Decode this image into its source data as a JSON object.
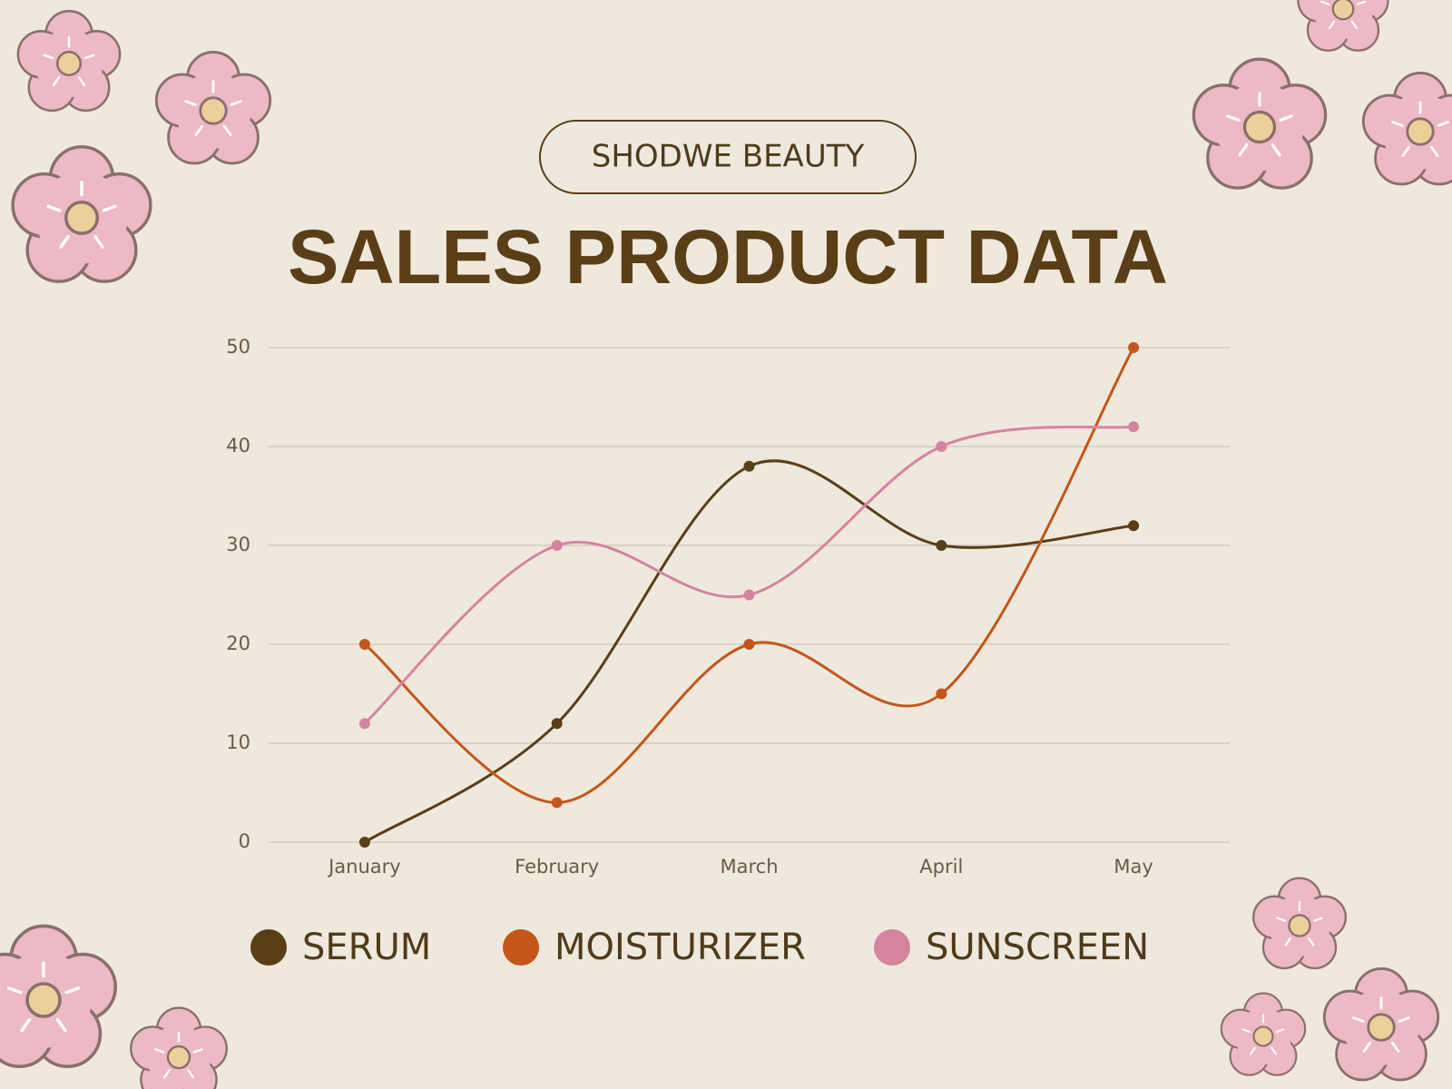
{
  "brand": "SHODWE BEAUTY",
  "chart_data": {
    "type": "line",
    "title": "SALES PRODUCT DATA",
    "categories": [
      "January",
      "February",
      "March",
      "April",
      "May"
    ],
    "series": [
      {
        "name": "SERUM",
        "color": "#5a3e17",
        "values": [
          0,
          12,
          38,
          30,
          32
        ]
      },
      {
        "name": "MOISTURIZER",
        "color": "#c4561a",
        "values": [
          20,
          4,
          20,
          15,
          50
        ]
      },
      {
        "name": "SUNSCREEN",
        "color": "#d4849f",
        "values": [
          12,
          30,
          25,
          40,
          42
        ]
      }
    ],
    "ylim": [
      0,
      50
    ],
    "yticks": [
      0,
      10,
      20,
      30,
      40,
      50
    ],
    "grid": true,
    "smooth": true,
    "legend": "bottom"
  }
}
